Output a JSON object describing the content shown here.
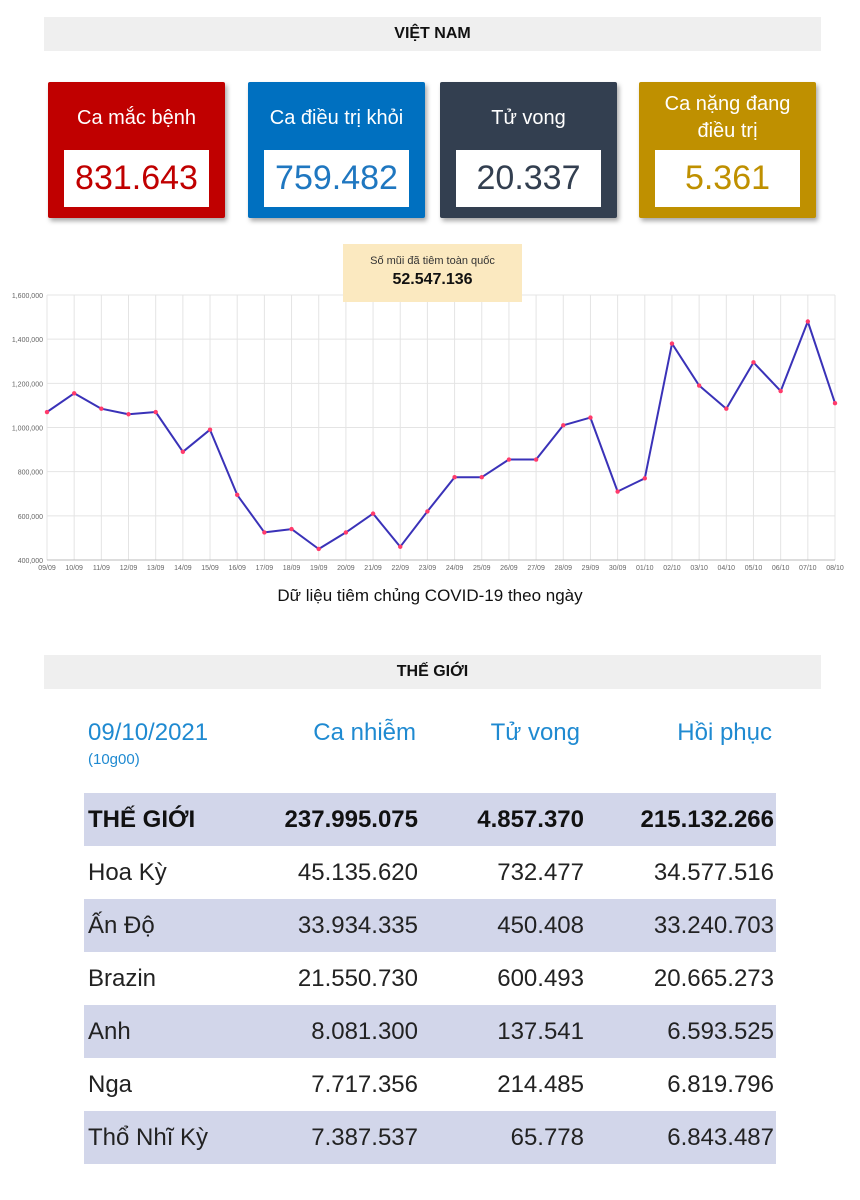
{
  "vietnam": {
    "title": "VIỆT NAM",
    "cards": [
      {
        "label": "Ca mắc bệnh",
        "value": "831.643",
        "bg": "#c00000",
        "fg": "#c00000"
      },
      {
        "label": "Ca điều trị khỏi",
        "value": "759.482",
        "bg": "#0070c0",
        "fg": "#1f77c0"
      },
      {
        "label": "Tử vong",
        "value": "20.337",
        "bg": "#333f50",
        "fg": "#333f50"
      },
      {
        "label": "Ca nặng đang điều trị",
        "value": "5.361",
        "bg": "#bf9000",
        "fg": "#bf9000"
      }
    ]
  },
  "vaccine_callout": {
    "label": "Số mũi đã tiêm toàn quốc",
    "value": "52.547.136"
  },
  "chart_caption": "Dữ liệu tiêm chủng COVID-19 theo ngày",
  "chart_data": {
    "type": "line",
    "title": "",
    "xlabel": "",
    "ylabel": "",
    "ylim": [
      400000,
      1600000
    ],
    "yticks": [
      400000,
      600000,
      800000,
      1000000,
      1200000,
      1400000,
      1600000
    ],
    "ytick_labels": [
      "400,000",
      "600,000",
      "800,000",
      "1,000,000",
      "1,200,000",
      "1,400,000",
      "1,600,000"
    ],
    "grid": true,
    "legend": "none",
    "line_color": "#3a32b8",
    "marker_color": "#ff3b6b",
    "categories": [
      "09/09",
      "10/09",
      "11/09",
      "12/09",
      "13/09",
      "14/09",
      "15/09",
      "16/09",
      "17/09",
      "18/09",
      "19/09",
      "20/09",
      "21/09",
      "22/09",
      "23/09",
      "24/09",
      "25/09",
      "26/09",
      "27/09",
      "28/09",
      "29/09",
      "30/09",
      "01/10",
      "02/10",
      "03/10",
      "04/10",
      "05/10",
      "06/10",
      "07/10",
      "08/10"
    ],
    "series": [
      {
        "values": [
          1070000,
          1155000,
          1085000,
          1060000,
          1070000,
          890000,
          990000,
          695000,
          525000,
          540000,
          450000,
          525000,
          610000,
          460000,
          620000,
          775000,
          775000,
          855000,
          855000,
          1010000,
          1045000,
          710000,
          770000,
          1380000,
          1190000,
          1085000,
          1295000,
          1165000,
          1480000,
          1110000
        ]
      }
    ]
  },
  "world": {
    "title": "THẾ GIỚI",
    "header": {
      "date": "09/10/2021",
      "time": "(10g00)",
      "cases": "Ca nhiễm",
      "deaths": "Tử vong",
      "recovered": "Hồi phục"
    },
    "rows": [
      {
        "name": "THẾ GIỚI",
        "cases": "237.995.075",
        "deaths": "4.857.370",
        "recovered": "215.132.266"
      },
      {
        "name": "Hoa Kỳ",
        "cases": "45.135.620",
        "deaths": "732.477",
        "recovered": "34.577.516"
      },
      {
        "name": "Ấn Độ",
        "cases": "33.934.335",
        "deaths": "450.408",
        "recovered": "33.240.703"
      },
      {
        "name": "Brazin",
        "cases": "21.550.730",
        "deaths": "600.493",
        "recovered": "20.665.273"
      },
      {
        "name": "Anh",
        "cases": "8.081.300",
        "deaths": "137.541",
        "recovered": "6.593.525"
      },
      {
        "name": "Nga",
        "cases": "7.717.356",
        "deaths": "214.485",
        "recovered": "6.819.796"
      },
      {
        "name": "Thổ Nhĩ Kỳ",
        "cases": "7.387.537",
        "deaths": "65.778",
        "recovered": "6.843.487"
      }
    ]
  }
}
